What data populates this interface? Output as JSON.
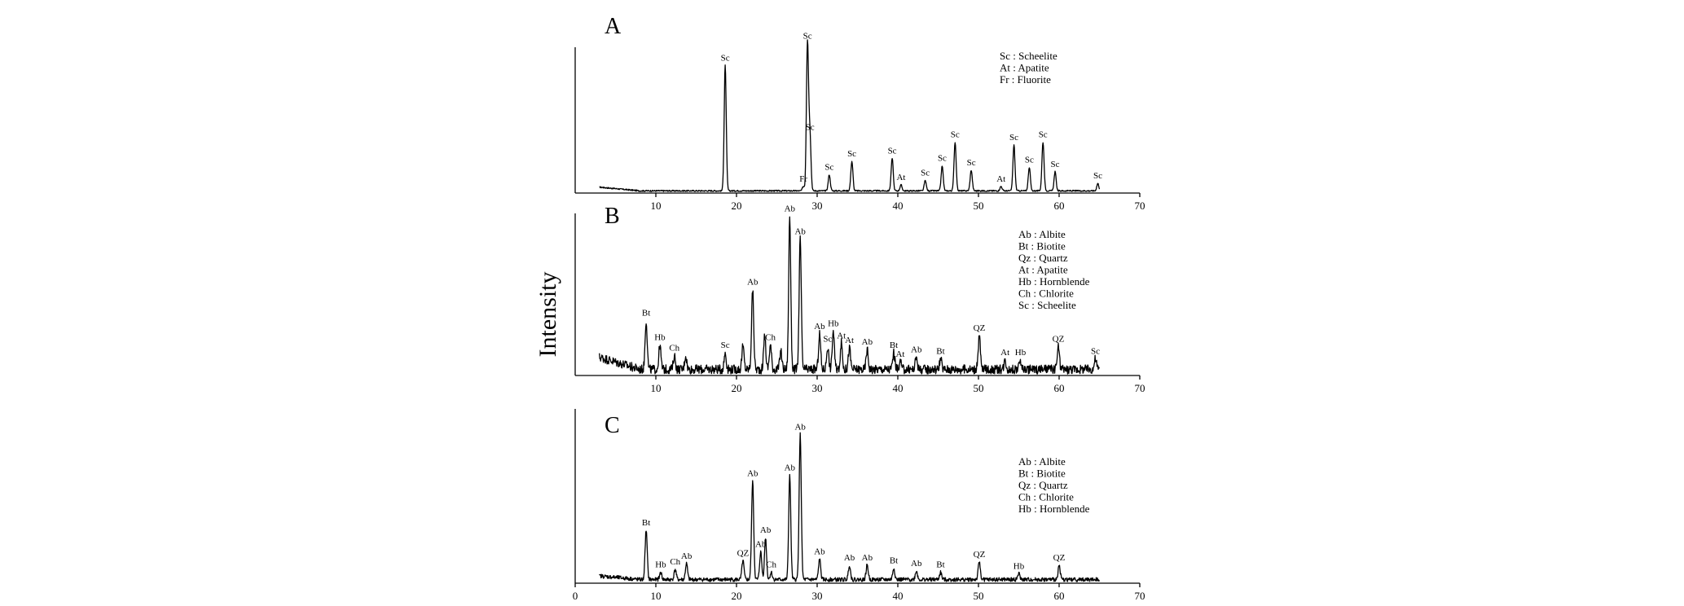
{
  "chart_data": {
    "type": "line",
    "ylabel": "Intensity",
    "panels": [
      {
        "id": "A",
        "title": "A",
        "xlim": [
          0,
          70
        ],
        "ticks": [
          10,
          20,
          30,
          40,
          50,
          60,
          70
        ],
        "tick_labels": [
          "10",
          "20",
          "30",
          "40",
          "50",
          "60",
          "70"
        ],
        "baseline": 1.5,
        "noise": 0.45,
        "legend": [
          "Sc : Scheelite",
          "At : Apatite",
          "Fr : Fluorite"
        ],
        "peaks": [
          {
            "x": 18.6,
            "y": 85,
            "label": "Sc"
          },
          {
            "x": 28.3,
            "y": 3,
            "label": "Fr"
          },
          {
            "x": 28.8,
            "y": 100,
            "label": "Sc"
          },
          {
            "x": 29.1,
            "y": 38,
            "label": "Sc"
          },
          {
            "x": 31.5,
            "y": 11,
            "label": "Sc"
          },
          {
            "x": 34.3,
            "y": 20,
            "label": "Sc"
          },
          {
            "x": 39.3,
            "y": 22,
            "label": "Sc"
          },
          {
            "x": 40.4,
            "y": 4,
            "label": "At"
          },
          {
            "x": 43.4,
            "y": 7,
            "label": "Sc"
          },
          {
            "x": 45.5,
            "y": 17,
            "label": "Sc"
          },
          {
            "x": 47.1,
            "y": 33,
            "label": "Sc"
          },
          {
            "x": 49.1,
            "y": 14,
            "label": "Sc"
          },
          {
            "x": 52.8,
            "y": 3,
            "label": "At"
          },
          {
            "x": 54.4,
            "y": 31,
            "label": "Sc"
          },
          {
            "x": 56.3,
            "y": 16,
            "label": "Sc"
          },
          {
            "x": 58.0,
            "y": 33,
            "label": "Sc"
          },
          {
            "x": 59.5,
            "y": 13,
            "label": "Sc"
          },
          {
            "x": 64.8,
            "y": 5,
            "label": "Sc"
          }
        ]
      },
      {
        "id": "B",
        "title": "B",
        "xlim": [
          0,
          70
        ],
        "ticks": [
          10,
          20,
          30,
          40,
          50,
          60,
          70
        ],
        "tick_labels": [
          "10",
          "20",
          "30",
          "40",
          "50",
          "60",
          "70"
        ],
        "baseline": 4,
        "noise": 3,
        "legend": [
          "Ab : Albite",
          "Bt : Biotite",
          "Qz : Quartz",
          "At : Apatite",
          "Hb : Hornblende",
          "Ch : Chlorite",
          "Sc : Scheelite"
        ],
        "peaks": [
          {
            "x": 8.8,
            "y": 32,
            "label": "Bt"
          },
          {
            "x": 10.5,
            "y": 16,
            "label": "Hb"
          },
          {
            "x": 12.3,
            "y": 9,
            "label": "Ch"
          },
          {
            "x": 18.6,
            "y": 11,
            "label": "Sc"
          },
          {
            "x": 22.0,
            "y": 52,
            "label": "Ab"
          },
          {
            "x": 24.2,
            "y": 16,
            "label": "Ch"
          },
          {
            "x": 26.6,
            "y": 100,
            "label": "Ab"
          },
          {
            "x": 27.9,
            "y": 85,
            "label": "Ab"
          },
          {
            "x": 30.3,
            "y": 23,
            "label": "Ab"
          },
          {
            "x": 31.3,
            "y": 15,
            "label": "Sc"
          },
          {
            "x": 32.0,
            "y": 25,
            "label": "Hb"
          },
          {
            "x": 33.0,
            "y": 17,
            "label": "At"
          },
          {
            "x": 34.0,
            "y": 14,
            "label": "At"
          },
          {
            "x": 36.2,
            "y": 13,
            "label": "Ab"
          },
          {
            "x": 39.5,
            "y": 11,
            "label": "Bt"
          },
          {
            "x": 40.3,
            "y": 5,
            "label": "At"
          },
          {
            "x": 42.3,
            "y": 8,
            "label": "Ab"
          },
          {
            "x": 45.3,
            "y": 7,
            "label": "Bt"
          },
          {
            "x": 50.1,
            "y": 22,
            "label": "QZ"
          },
          {
            "x": 53.3,
            "y": 6,
            "label": "At"
          },
          {
            "x": 55.2,
            "y": 6,
            "label": "Hb"
          },
          {
            "x": 59.9,
            "y": 15,
            "label": "QZ"
          },
          {
            "x": 64.5,
            "y": 7,
            "label": "Sc"
          }
        ],
        "extra_peaks": [
          {
            "x": 13.7,
            "y": 9
          },
          {
            "x": 20.8,
            "y": 15
          },
          {
            "x": 23.5,
            "y": 23
          },
          {
            "x": 25.5,
            "y": 12
          }
        ]
      },
      {
        "id": "C",
        "title": "C",
        "xlim": [
          0,
          70
        ],
        "ticks": [
          0,
          10,
          20,
          30,
          40,
          50,
          60,
          70
        ],
        "tick_labels": [
          "0",
          "10",
          "20",
          "30",
          "40",
          "50",
          "60",
          "70"
        ],
        "baseline": 2.5,
        "noise": 1.4,
        "legend": [
          "Ab : Albite",
          "Bt : Biotite",
          "Qz : Quartz",
          "Ch : Chlorite",
          "Hb : Hornblende"
        ],
        "peaks": [
          {
            "x": 8.8,
            "y": 34,
            "label": "Bt"
          },
          {
            "x": 10.6,
            "y": 5,
            "label": "Hb"
          },
          {
            "x": 12.4,
            "y": 7,
            "label": "Ch"
          },
          {
            "x": 13.8,
            "y": 11,
            "label": "Ab"
          },
          {
            "x": 20.8,
            "y": 13,
            "label": "QZ"
          },
          {
            "x": 22.0,
            "y": 68,
            "label": "Ab"
          },
          {
            "x": 23.0,
            "y": 19,
            "label": "Ab"
          },
          {
            "x": 23.6,
            "y": 29,
            "label": "Ab"
          },
          {
            "x": 24.3,
            "y": 5,
            "label": "Ch"
          },
          {
            "x": 26.6,
            "y": 72,
            "label": "Ab"
          },
          {
            "x": 27.9,
            "y": 100,
            "label": "Ab"
          },
          {
            "x": 30.3,
            "y": 14,
            "label": "Ab"
          },
          {
            "x": 34.0,
            "y": 10,
            "label": "Ab"
          },
          {
            "x": 36.2,
            "y": 10,
            "label": "Ab"
          },
          {
            "x": 39.5,
            "y": 8,
            "label": "Bt"
          },
          {
            "x": 42.3,
            "y": 6,
            "label": "Ab"
          },
          {
            "x": 45.3,
            "y": 5,
            "label": "Bt"
          },
          {
            "x": 50.1,
            "y": 12,
            "label": "QZ"
          },
          {
            "x": 55.0,
            "y": 4,
            "label": "Hb"
          },
          {
            "x": 60.0,
            "y": 10,
            "label": "QZ"
          }
        ]
      }
    ]
  }
}
